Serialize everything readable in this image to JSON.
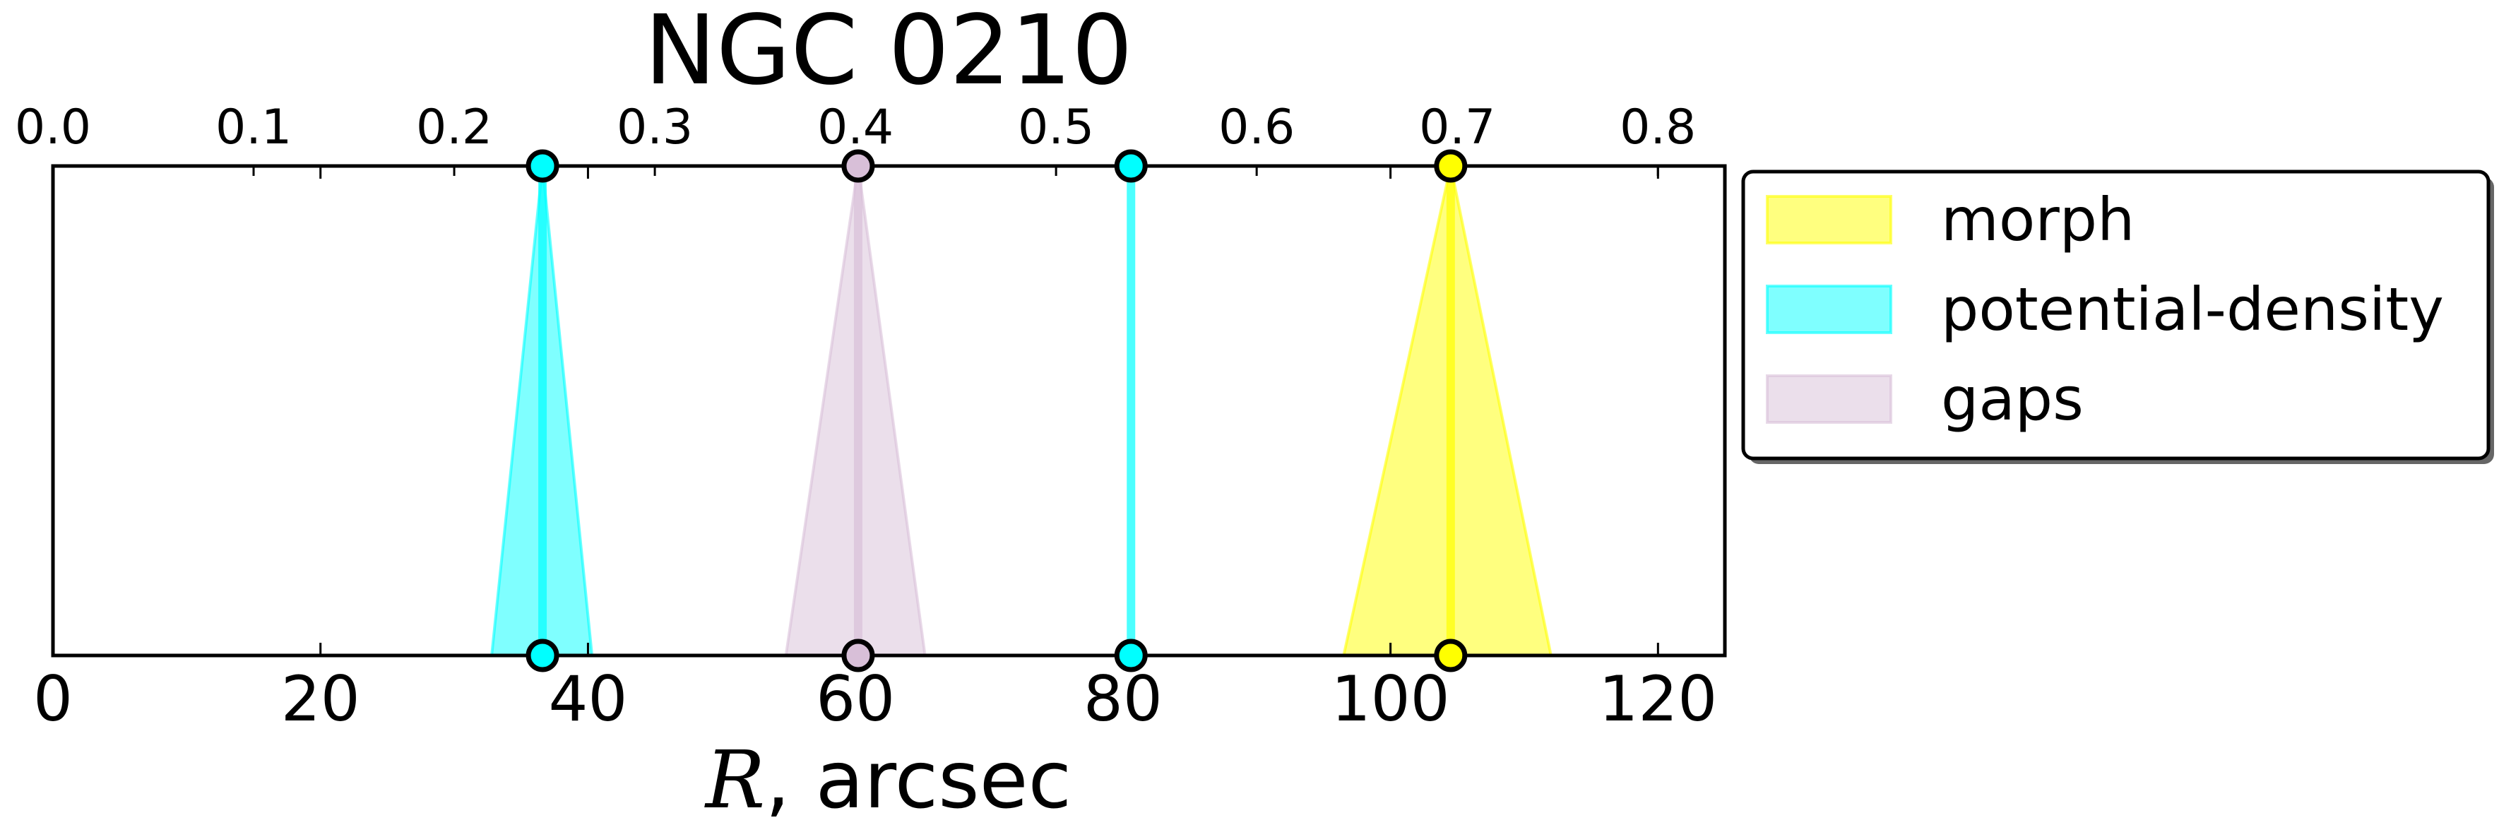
{
  "chart_data": {
    "type": "area",
    "title": "NGC 0210",
    "xlabel_symbol": "R",
    "xlabel_unit": ", arcsec",
    "xlim": [
      0,
      125
    ],
    "x_ticks": [
      0,
      20,
      40,
      60,
      80,
      100,
      120
    ],
    "x_tick_labels": [
      "0",
      "20",
      "40",
      "60",
      "80",
      "100",
      "120"
    ],
    "top_axis": {
      "scale_per_arcsec": 0.006667,
      "ticks": [
        0.0,
        0.1,
        0.2,
        0.3,
        0.4,
        0.5,
        0.6,
        0.7,
        0.8
      ],
      "tick_labels": [
        "0.0",
        "0.1",
        "0.2",
        "0.3",
        "0.4",
        "0.5",
        "0.6",
        "0.7",
        "0.8"
      ]
    },
    "grid": false,
    "legend_position": "outside-right-top",
    "series": [
      {
        "name": "morph",
        "color": "#ffff00",
        "center": 104.5,
        "low": 96.5,
        "high": 112
      },
      {
        "name": "potential-density",
        "color": "#00ffff",
        "center": 36.6,
        "low": 32.8,
        "high": 40.3
      },
      {
        "name": "gaps",
        "color": "#d8bfd8",
        "center": 60.2,
        "low": 54.8,
        "high": 65.2
      },
      {
        "name": "potential-density",
        "color": "#00ffff",
        "center": 80.6,
        "low": 80.6,
        "high": 80.6
      }
    ],
    "legend": [
      {
        "label": "morph",
        "color": "#ffff00"
      },
      {
        "label": "potential-density",
        "color": "#00ffff"
      },
      {
        "label": "gaps",
        "color": "#d8bfd8"
      }
    ]
  }
}
